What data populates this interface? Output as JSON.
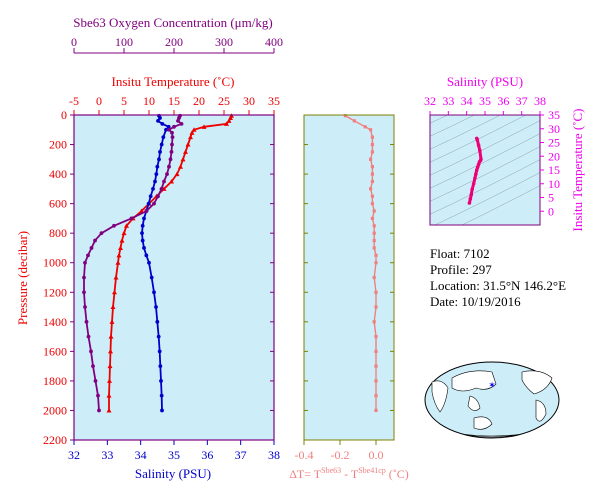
{
  "colors": {
    "plot_bg": "#cdeef8",
    "frame": "#800080",
    "oxygen": "#800080",
    "temperature": "#ee0000",
    "salinity": "#0000cc",
    "delta_t": "#f08080",
    "ts_curve": "#ee0077",
    "ts_axis": "#ee00ee",
    "dt_frame": "#808000"
  },
  "info": {
    "float": "Float:  7102",
    "profile": "Profile:  297",
    "location": "Location:  31.5°N  146.2°E",
    "date": "Date:  10/19/2016"
  },
  "chart_data": [
    {
      "type": "line",
      "title": "",
      "ylabel": "Pressure (decibar)",
      "ylim": [
        2200,
        0
      ],
      "yticks": [
        0,
        200,
        400,
        600,
        800,
        1000,
        1200,
        1400,
        1600,
        1800,
        2000,
        2200
      ],
      "axes": {
        "oxygen": {
          "label": "Sbe63 Oxygen Concentration (μm/kg)",
          "range": [
            0,
            400
          ],
          "ticks": [
            0,
            100,
            200,
            300,
            400
          ]
        },
        "temperature": {
          "label": "Insitu Temperature (˚C)",
          "range": [
            -5,
            35
          ],
          "ticks": [
            -5,
            0,
            5,
            10,
            15,
            20,
            25,
            30,
            35
          ]
        },
        "salinity": {
          "label": "Salinity (PSU)",
          "range": [
            32,
            38
          ],
          "ticks": [
            32,
            33,
            34,
            35,
            36,
            37,
            38
          ]
        }
      },
      "series": [
        {
          "axis": "temperature",
          "pressure": [
            5,
            20,
            40,
            60,
            80,
            100,
            120,
            150,
            200,
            250,
            300,
            350,
            400,
            450,
            500,
            550,
            600,
            650,
            700,
            750,
            800,
            850,
            900,
            950,
            1000,
            1100,
            1200,
            1300,
            1400,
            1500,
            1600,
            1700,
            1800,
            1900,
            2000
          ],
          "values": [
            26.5,
            26.3,
            26.0,
            25.5,
            21.0,
            19.0,
            18.6,
            18.3,
            17.8,
            17.3,
            16.8,
            16.3,
            15.6,
            14.5,
            13.0,
            11.5,
            10.0,
            8.5,
            6.8,
            5.5,
            5.0,
            4.6,
            4.3,
            4.0,
            3.8,
            3.4,
            3.1,
            2.8,
            2.6,
            2.4,
            2.3,
            2.2,
            2.1,
            2.0,
            2.0
          ]
        },
        {
          "axis": "salinity",
          "pressure": [
            5,
            20,
            40,
            60,
            80,
            100,
            150,
            200,
            250,
            300,
            350,
            400,
            450,
            500,
            550,
            600,
            650,
            700,
            750,
            800,
            850,
            900,
            950,
            1000,
            1100,
            1200,
            1300,
            1400,
            1500,
            1600,
            1700,
            1800,
            1900,
            2000
          ],
          "values": [
            34.55,
            34.58,
            34.52,
            34.65,
            34.84,
            34.76,
            34.68,
            34.63,
            34.58,
            34.55,
            34.5,
            34.47,
            34.43,
            34.37,
            34.3,
            34.24,
            34.17,
            34.1,
            34.06,
            34.04,
            34.06,
            34.1,
            34.17,
            34.25,
            34.33,
            34.4,
            34.46,
            34.5,
            34.54,
            34.57,
            34.59,
            34.61,
            34.63,
            34.64
          ]
        },
        {
          "axis": "oxygen",
          "pressure": [
            5,
            20,
            40,
            60,
            80,
            100,
            120,
            150,
            200,
            250,
            300,
            350,
            400,
            450,
            500,
            550,
            600,
            650,
            700,
            750,
            800,
            850,
            900,
            950,
            1000,
            1100,
            1200,
            1300,
            1400,
            1500,
            1600,
            1700,
            1800,
            1900,
            2000
          ],
          "values": [
            212,
            210,
            208,
            215,
            200,
            190,
            196,
            197,
            196,
            195,
            193,
            190,
            186,
            180,
            175,
            168,
            160,
            145,
            115,
            80,
            55,
            42,
            35,
            28,
            22,
            20,
            20,
            22,
            25,
            29,
            34,
            38,
            43,
            48,
            50
          ]
        }
      ]
    },
    {
      "type": "line",
      "title": "",
      "xlabel": "ΔT= T",
      "xlabel_sup1": "Sbe63",
      "xlabel_mid": " - T",
      "xlabel_sup2": "Sbe41cp",
      "xlabel_end": " (˚C)",
      "xlim": [
        -0.4,
        0.1
      ],
      "xticks": [
        "-0.4",
        "-0.2",
        "0.0"
      ],
      "xtick_values": [
        -0.4,
        -0.2,
        0.0
      ],
      "ylim": [
        2200,
        0
      ],
      "series": [
        {
          "name": "",
          "pressure": [
            5,
            40,
            80,
            100,
            150,
            200,
            250,
            300,
            350,
            400,
            450,
            500,
            550,
            600,
            650,
            700,
            750,
            800,
            850,
            900,
            950,
            1000,
            1100,
            1200,
            1300,
            1400,
            1500,
            1600,
            1700,
            1800,
            1900,
            2000
          ],
          "values": [
            -0.17,
            -0.12,
            -0.06,
            -0.03,
            -0.02,
            -0.02,
            -0.02,
            -0.03,
            -0.02,
            -0.02,
            -0.02,
            -0.03,
            -0.02,
            -0.02,
            -0.01,
            -0.02,
            -0.01,
            -0.01,
            -0.01,
            -0.01,
            0.0,
            0.0,
            -0.01,
            0.0,
            0.0,
            -0.01,
            0.0,
            0.0,
            0.0,
            0.0,
            0.0,
            0.0
          ]
        }
      ]
    },
    {
      "type": "line",
      "title": "",
      "xlabel": "Salinity (PSU)",
      "ylabel": "Insitu Temperature (˚C)",
      "xlim": [
        32,
        38
      ],
      "ylim": [
        -5,
        35
      ],
      "xticks": [
        32,
        33,
        34,
        35,
        36,
        37,
        38
      ],
      "yticks": [
        0,
        5,
        10,
        15,
        20,
        25,
        30,
        35
      ],
      "series": [
        {
          "name": "",
          "salinity": [
            34.55,
            34.58,
            34.65,
            34.72,
            34.78,
            34.76,
            34.7,
            34.65,
            34.6,
            34.55,
            34.5,
            34.45,
            34.38,
            34.3,
            34.25,
            34.2,
            34.15
          ],
          "temperature": [
            26.5,
            26.0,
            24.0,
            22.0,
            19.0,
            18.5,
            18.0,
            17.0,
            16.0,
            15.0,
            13.5,
            12.0,
            10.0,
            8.0,
            6.0,
            4.5,
            3.0
          ]
        }
      ]
    }
  ]
}
